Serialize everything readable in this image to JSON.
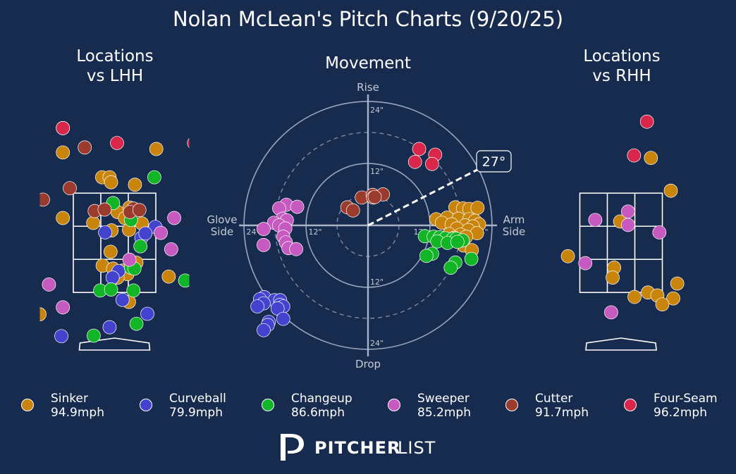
{
  "title": "Nolan McLean's Pitch Charts (9/20/25)",
  "panels": {
    "lhh_title": "Locations\nvs LHH",
    "movement_title": "Movement",
    "rhh_title": "Locations\nvs RHH"
  },
  "movement_labels": {
    "top": "Rise",
    "bottom": "Drop",
    "left": "Glove\nSide",
    "right": "Arm\nSide",
    "ring_labels": [
      "24\"",
      "12\"",
      "12\"",
      "24\"",
      "24\"",
      "12\"",
      "12\"",
      "24\""
    ],
    "arm_angle_label": "27°"
  },
  "colors": {
    "background": "#162b4e",
    "Sinker": "#c9840b",
    "Curveball": "#4343d0",
    "Changeup": "#12b526",
    "Sweeper": "#c75ac0",
    "Cutter": "#9b3b2d",
    "Four-Seam": "#d8274a"
  },
  "legend": [
    {
      "name": "Sinker",
      "velo": "94.9mph",
      "color": "#c9840b"
    },
    {
      "name": "Curveball",
      "velo": "79.9mph",
      "color": "#4343d0"
    },
    {
      "name": "Changeup",
      "velo": "86.6mph",
      "color": "#12b526"
    },
    {
      "name": "Sweeper",
      "velo": "85.2mph",
      "color": "#c75ac0"
    },
    {
      "name": "Cutter",
      "velo": "91.7mph",
      "color": "#9b3b2d"
    },
    {
      "name": "Four-Seam",
      "velo": "96.2mph",
      "color": "#d8274a"
    }
  ],
  "logo": {
    "bold": "PITCHER",
    "light": "LIST",
    "icon": "pitcherlist-p-logo"
  },
  "chart_data": [
    {
      "type": "scatter",
      "panel": "Locations vs LHH",
      "x_unit": "plate_x_ft",
      "y_unit": "plate_z_ft",
      "xlim": [
        -1.9,
        1.9
      ],
      "ylim": [
        0.0,
        5.4
      ],
      "strike_zone": {
        "x": [
          -0.83,
          0.83
        ],
        "z": [
          1.5,
          3.5
        ]
      },
      "series": [
        {
          "name": "Sinker",
          "points": [
            [
              -1.04,
              4.32
            ],
            [
              0.84,
              4.39
            ],
            [
              -0.25,
              3.82
            ],
            [
              -0.1,
              3.82
            ],
            [
              -0.07,
              3.72
            ],
            [
              0.41,
              3.67
            ],
            [
              0.06,
              3.12
            ],
            [
              0.21,
              3.0
            ],
            [
              -1.04,
              3.0
            ],
            [
              -0.43,
              2.9
            ],
            [
              0.3,
              3.21
            ],
            [
              0.55,
              2.89
            ],
            [
              -0.06,
              2.75
            ],
            [
              0.29,
              2.76
            ],
            [
              -0.08,
              2.32
            ],
            [
              -0.24,
              2.04
            ],
            [
              -0.03,
              1.98
            ],
            [
              0.16,
              1.94
            ],
            [
              0.44,
              2.1
            ],
            [
              0.26,
              1.87
            ],
            [
              0.06,
              1.8
            ],
            [
              1.09,
              1.82
            ],
            [
              0.29,
              1.31
            ],
            [
              -1.51,
              1.06
            ]
          ]
        },
        {
          "name": "Curveball",
          "points": [
            [
              -0.19,
              2.71
            ],
            [
              0.54,
              2.6
            ],
            [
              0.82,
              2.82
            ],
            [
              0.62,
              2.69
            ],
            [
              0.08,
              1.93
            ],
            [
              -0.04,
              1.8
            ],
            [
              0.16,
              1.35
            ],
            [
              0.66,
              1.07
            ],
            [
              -0.1,
              0.8
            ],
            [
              -1.07,
              0.62
            ]
          ]
        },
        {
          "name": "Changeup",
          "points": [
            [
              0.8,
              3.82
            ],
            [
              -0.03,
              3.3
            ],
            [
              0.33,
              2.96
            ],
            [
              0.52,
              2.43
            ],
            [
              0.33,
              2.0
            ],
            [
              0.4,
              1.98
            ],
            [
              -0.29,
              1.54
            ],
            [
              -0.07,
              1.56
            ],
            [
              0.38,
              1.54
            ],
            [
              1.42,
              1.74
            ],
            [
              0.44,
              0.87
            ],
            [
              -0.42,
              0.63
            ]
          ]
        },
        {
          "name": "Sweeper",
          "points": [
            [
              1.2,
              3.0
            ],
            [
              0.93,
              2.7
            ],
            [
              1.14,
              2.37
            ],
            [
              0.3,
              2.16
            ],
            [
              -1.32,
              1.66
            ],
            [
              -1.04,
              1.2
            ]
          ]
        },
        {
          "name": "Cutter",
          "points": [
            [
              -1.04,
              4.81
            ],
            [
              -0.6,
              4.42
            ],
            [
              -0.9,
              3.6
            ],
            [
              -1.44,
              3.37
            ],
            [
              -0.4,
              3.14
            ],
            [
              -0.2,
              3.17
            ],
            [
              0.38,
              3.19
            ],
            [
              0.31,
              3.12
            ],
            [
              0.5,
              3.16
            ]
          ]
        },
        {
          "name": "Four-Seam",
          "points": [
            [
              -1.04,
              4.81
            ],
            [
              0.05,
              4.51
            ],
            [
              1.6,
              4.51
            ]
          ]
        }
      ]
    },
    {
      "type": "polar-scatter",
      "panel": "Movement",
      "x_unit": "horizontal_break_in (arm side positive)",
      "y_unit": "induced_vertical_break_in",
      "rings_in": [
        6,
        12,
        18,
        24
      ],
      "arm_angle_deg": 27,
      "series": [
        {
          "name": "Sinker",
          "points": [
            [
              16.9,
              3.5
            ],
            [
              18.4,
              3.3
            ],
            [
              19.6,
              3.2
            ],
            [
              21.2,
              3.4
            ],
            [
              13.2,
              1.2
            ],
            [
              15.3,
              1.5
            ],
            [
              17.5,
              1.3
            ],
            [
              19.6,
              1.2
            ],
            [
              20.7,
              0.9
            ],
            [
              21.5,
              0.2
            ],
            [
              14.3,
              0.5
            ],
            [
              16.2,
              0.2
            ],
            [
              18.8,
              0.0
            ],
            [
              20.3,
              -0.2
            ],
            [
              17.2,
              -0.6
            ],
            [
              19.4,
              -0.9
            ],
            [
              21.1,
              -1.5
            ],
            [
              15.7,
              -1.7
            ],
            [
              17.9,
              -1.8
            ],
            [
              19.0,
              -2.2
            ],
            [
              16.7,
              -2.4
            ],
            [
              13.4,
              -2.7
            ],
            [
              15.2,
              -3.2
            ],
            [
              18.5,
              -3.9
            ],
            [
              20.1,
              -4.8
            ]
          ]
        },
        {
          "name": "Curveball",
          "points": [
            [
              -20.1,
              -13.9
            ],
            [
              -20.9,
              -14.3
            ],
            [
              -18.1,
              -14.5
            ],
            [
              -17.0,
              -14.5
            ],
            [
              -20.2,
              -15.1
            ],
            [
              -17.0,
              -15.4
            ],
            [
              -21.4,
              -15.7
            ],
            [
              -16.4,
              -15.7
            ],
            [
              -17.5,
              -16.1
            ],
            [
              -19.2,
              -18.7
            ],
            [
              -19.4,
              -19.3
            ],
            [
              -16.4,
              -18.1
            ],
            [
              -20.2,
              -20.3
            ]
          ]
        },
        {
          "name": "Changeup",
          "points": [
            [
              11.0,
              -2.1
            ],
            [
              12.7,
              -2.2
            ],
            [
              13.9,
              -2.3
            ],
            [
              15.0,
              -2.5
            ],
            [
              16.4,
              -2.6
            ],
            [
              17.1,
              -2.6
            ],
            [
              18.3,
              -2.9
            ],
            [
              13.4,
              -3.1
            ],
            [
              15.4,
              -3.4
            ],
            [
              17.3,
              -3.2
            ],
            [
              12.4,
              -5.5
            ],
            [
              11.3,
              -5.9
            ],
            [
              16.9,
              -7.2
            ],
            [
              20.0,
              -6.5
            ],
            [
              16.0,
              -8.2
            ]
          ]
        },
        {
          "name": "Sweeper",
          "points": [
            [
              -15.8,
              4.0
            ],
            [
              -13.7,
              3.6
            ],
            [
              -17.2,
              3.3
            ],
            [
              -16.5,
              1.3
            ],
            [
              -15.7,
              1.0
            ],
            [
              -18.2,
              0.5
            ],
            [
              -17.2,
              0.0
            ],
            [
              -16.0,
              -0.6
            ],
            [
              -16.4,
              -2.2
            ],
            [
              -15.9,
              -3.3
            ],
            [
              -20.2,
              -3.8
            ],
            [
              -15.4,
              -4.4
            ],
            [
              -13.9,
              -4.6
            ],
            [
              -20.2,
              -0.7
            ]
          ]
        },
        {
          "name": "Cutter",
          "points": [
            [
              -4.0,
              3.5
            ],
            [
              -2.9,
              2.9
            ],
            [
              -1.2,
              5.4
            ],
            [
              0.9,
              5.9
            ],
            [
              1.0,
              5.4
            ],
            [
              2.9,
              6.0
            ],
            [
              1.3,
              5.5
            ]
          ]
        },
        {
          "name": "Four-Seam",
          "points": [
            [
              9.9,
              14.8
            ],
            [
              13.0,
              13.7
            ],
            [
              9.1,
              12.3
            ],
            [
              12.4,
              11.9
            ]
          ]
        }
      ]
    },
    {
      "type": "scatter",
      "panel": "Locations vs RHH",
      "x_unit": "plate_x_ft",
      "y_unit": "plate_z_ft",
      "xlim": [
        -1.9,
        1.9
      ],
      "ylim": [
        0.0,
        5.4
      ],
      "strike_zone": {
        "x": [
          -0.83,
          0.83
        ],
        "z": [
          1.5,
          3.5
        ]
      },
      "series": [
        {
          "name": "Sinker",
          "points": [
            [
              0.6,
              4.21
            ],
            [
              1.0,
              3.55
            ],
            [
              -0.02,
              2.93
            ],
            [
              -1.07,
              2.23
            ],
            [
              -0.14,
              2.0
            ],
            [
              -0.17,
              1.8
            ],
            [
              0.27,
              1.41
            ],
            [
              0.54,
              1.5
            ],
            [
              0.73,
              1.44
            ],
            [
              1.05,
              1.38
            ],
            [
              1.13,
              1.68
            ],
            [
              0.83,
              1.26
            ]
          ]
        },
        {
          "name": "Curveball",
          "points": [
            [
              -2.07,
              0.92
            ]
          ]
        },
        {
          "name": "Changeup",
          "points": []
        },
        {
          "name": "Sweeper",
          "points": [
            [
              -0.52,
              2.96
            ],
            [
              0.14,
              3.13
            ],
            [
              0.14,
              2.86
            ],
            [
              0.77,
              2.71
            ],
            [
              -0.72,
              2.09
            ],
            [
              -0.2,
              1.1
            ],
            [
              -2.07,
              1.28
            ]
          ]
        },
        {
          "name": "Cutter",
          "points": []
        },
        {
          "name": "Four-Seam",
          "points": [
            [
              0.52,
              4.94
            ],
            [
              0.26,
              4.26
            ]
          ]
        }
      ]
    }
  ]
}
